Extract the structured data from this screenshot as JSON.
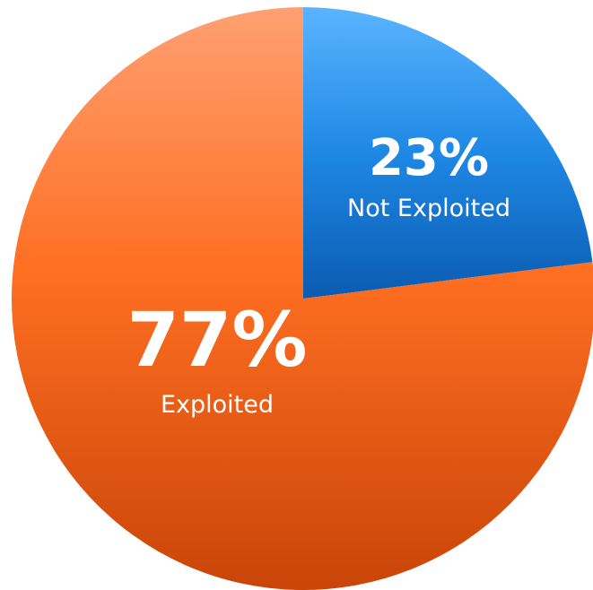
{
  "chart_data": {
    "type": "pie",
    "title": "",
    "slices": [
      {
        "label": "Not Exploited",
        "value": 23,
        "value_label": "23%",
        "color": "#1E88E5"
      },
      {
        "label": "Exploited",
        "value": 77,
        "value_label": "77%",
        "color": "#FF6F22"
      }
    ],
    "start_angle_deg": 0,
    "direction": "clockwise",
    "legend": "none"
  }
}
